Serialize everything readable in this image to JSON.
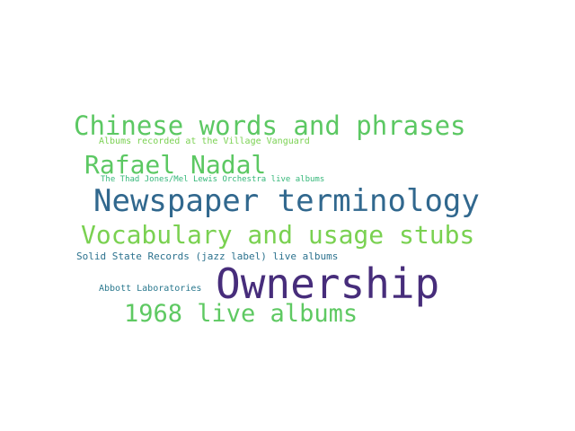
{
  "words": [
    {
      "text": "Chinese words and phrases",
      "color": "#5cc863"
    },
    {
      "text": "Albums recorded at the Village Vanguard",
      "color": "#7ad151"
    },
    {
      "text": "Rafael Nadal",
      "color": "#5cc863"
    },
    {
      "text": "The Thad Jones/Mel Lewis Orchestra live albums",
      "color": "#35b779"
    },
    {
      "text": "Newspaper terminology",
      "color": "#31688e"
    },
    {
      "text": "Vocabulary and usage stubs",
      "color": "#7ad151"
    },
    {
      "text": "Solid State Records (jazz label) live albums",
      "color": "#2c728e"
    },
    {
      "text": "Abbott Laboratories",
      "color": "#2a788e"
    },
    {
      "text": "Ownership",
      "color": "#472d7b"
    },
    {
      "text": "1968 live albums",
      "color": "#5ec962"
    }
  ]
}
